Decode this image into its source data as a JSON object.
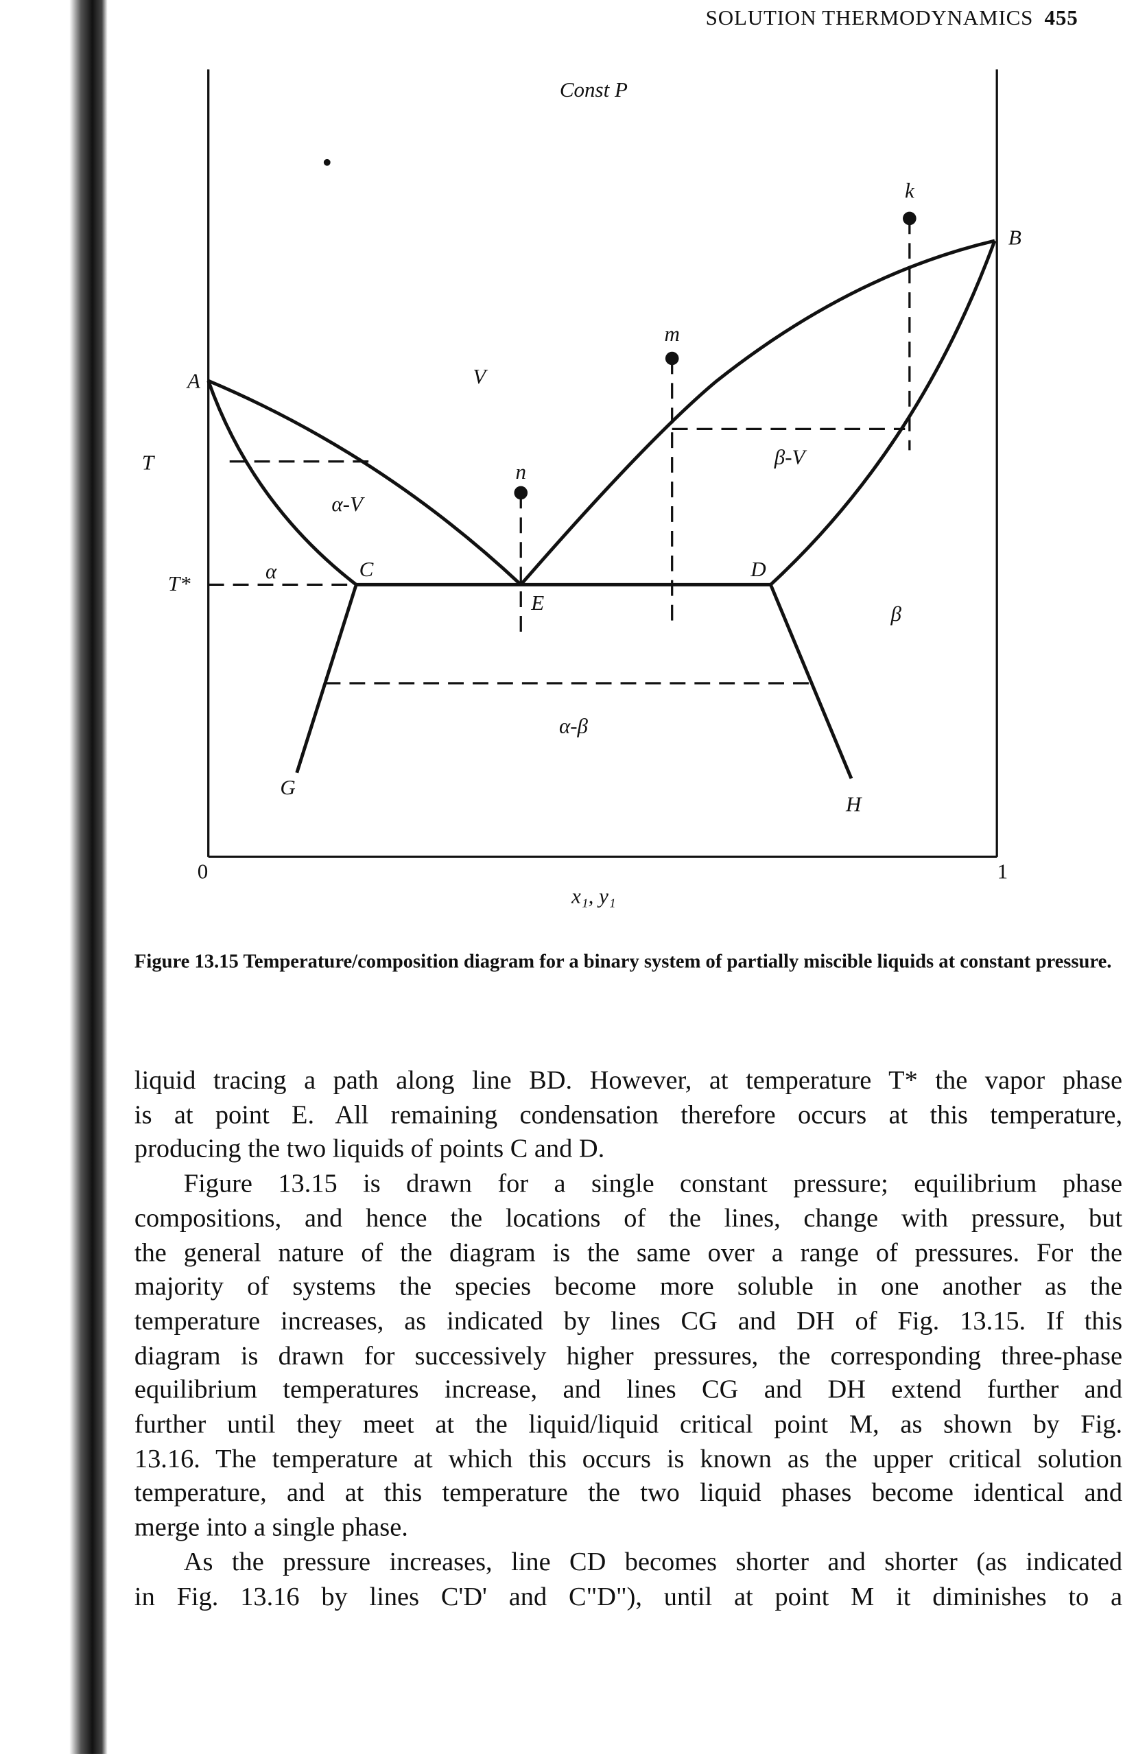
{
  "header": {
    "running_title": "SOLUTION THERMODYNAMICS",
    "page_number": "455"
  },
  "figure": {
    "labels": {
      "const_p": "Const P",
      "t": "T",
      "t_star": "T*",
      "a": "A",
      "b": "B",
      "c": "C",
      "d": "D",
      "e": "E",
      "g": "G",
      "h": "H",
      "v": "V",
      "k": "k",
      "m": "m",
      "n": "n",
      "alpha": "α",
      "alpha_v": "α-V",
      "beta_v": "β-V",
      "beta": "β",
      "alpha_beta": "α-β",
      "x_axis": "x₁, y₁",
      "x_min": "0",
      "x_max": "1"
    },
    "caption": {
      "number": "Figure 13.15",
      "text": "Temperature/composition diagram for a binary system of partially miscible liquids at constant pressure."
    }
  },
  "paragraphs": [
    {
      "lines": [
        "liquid tracing a path along line BD. However, at temperature T* the vapor phase",
        "is at point E. All remaining condensation therefore occurs at this temperature,",
        "producing the two liquids of points C and D."
      ]
    },
    {
      "lines": [
        "Figure 13.15 is drawn for a single constant pressure; equilibrium phase",
        "compositions, and hence the locations of the lines, change with pressure, but",
        "the general nature of the diagram is the same over a range of pressures. For the",
        "majority of systems the species become more soluble in one another as the",
        "temperature increases, as indicated by lines CG and DH of Fig. 13.15. If this",
        "diagram is drawn for successively higher pressures, the corresponding three-phase",
        "equilibrium temperatures increase, and lines CG and DH extend further and",
        "further until they meet at the liquid/liquid critical point M, as shown by Fig.",
        "13.16. The temperature at which this occurs is known as the upper critical solution",
        "temperature, and at this temperature the two liquid phases become identical and",
        "merge into a single phase."
      ]
    },
    {
      "lines": [
        "As the pressure increases, line CD becomes shorter and shorter (as indicated",
        "in Fig. 13.16 by lines C'D' and C\"D\"), until at point M it diminishes to a"
      ]
    }
  ]
}
